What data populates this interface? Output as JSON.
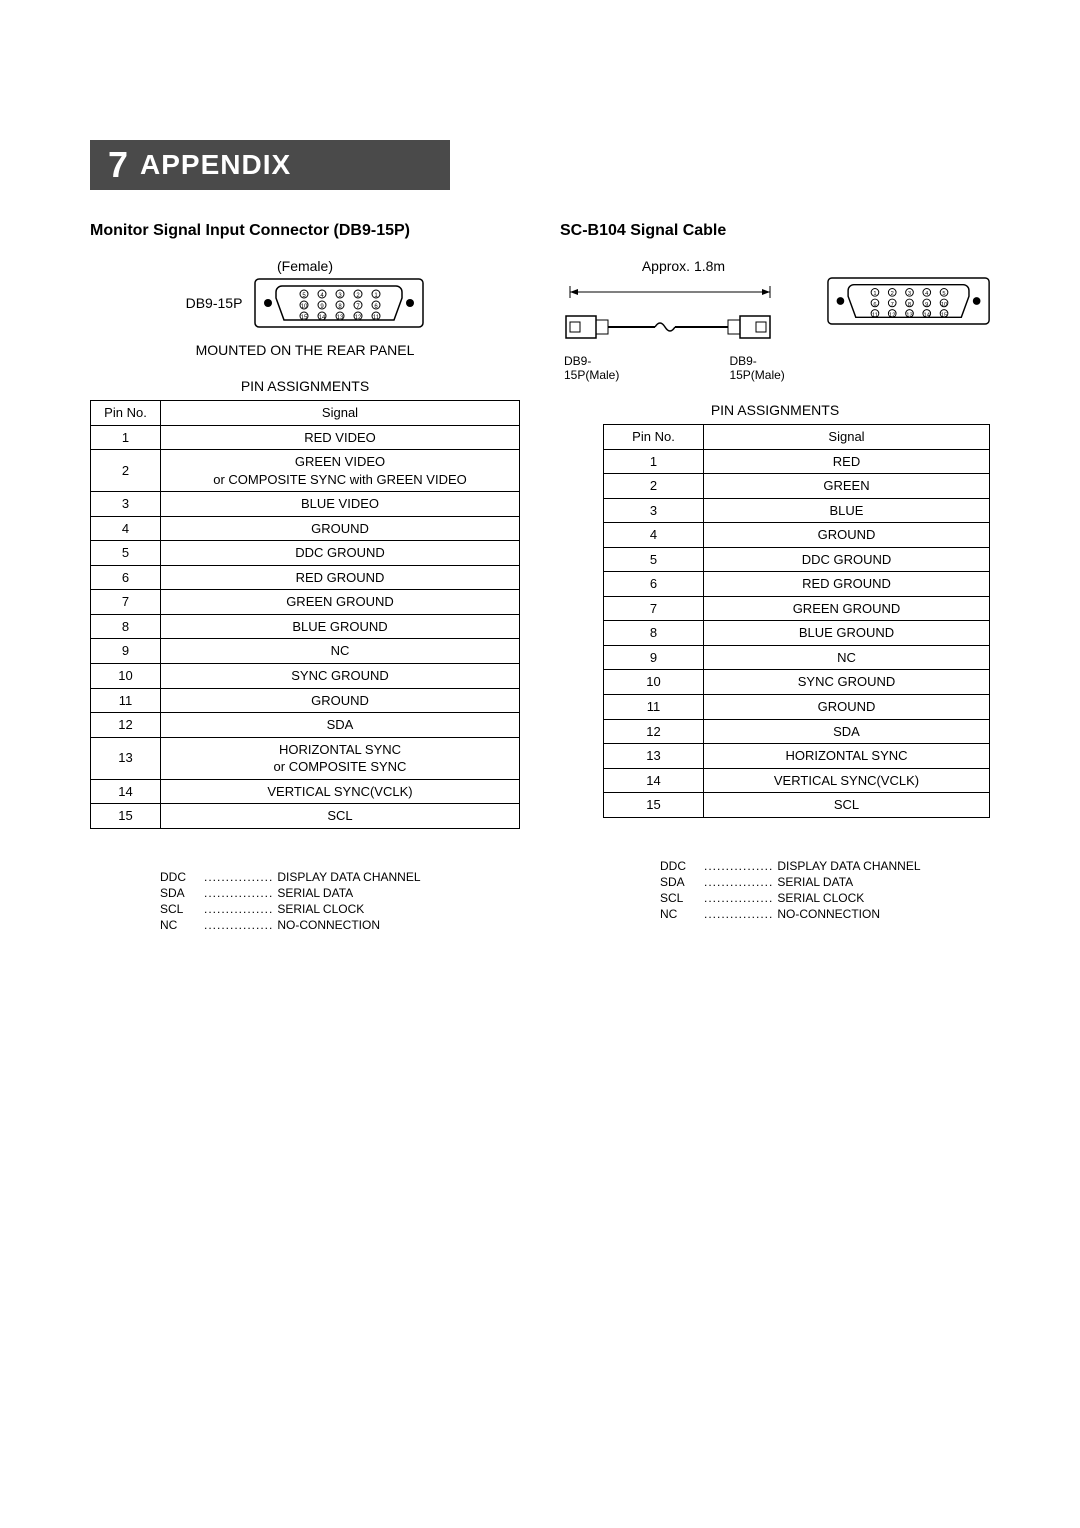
{
  "chapter": {
    "number": "7",
    "title": "APPENDIX"
  },
  "left": {
    "section_title": "Monitor Signal Input Connector (DB9-15P)",
    "connector_caption": "(Female)",
    "connector_side_label": "DB9-15P",
    "mounted_text": "MOUNTED ON THE REAR PANEL",
    "pin_title": "PIN ASSIGNMENTS",
    "table": {
      "headers": [
        "Pin No.",
        "Signal"
      ],
      "rows": [
        [
          "1",
          "RED VIDEO"
        ],
        [
          "2",
          "GREEN VIDEO\nor COMPOSITE SYNC with GREEN VIDEO"
        ],
        [
          "3",
          "BLUE VIDEO"
        ],
        [
          "4",
          "GROUND"
        ],
        [
          "5",
          "DDC  GROUND"
        ],
        [
          "6",
          "RED  GROUND"
        ],
        [
          "7",
          "GREEN  GROUND"
        ],
        [
          "8",
          "BLUE  GROUND"
        ],
        [
          "9",
          "NC"
        ],
        [
          "10",
          "SYNC  GROUND"
        ],
        [
          "11",
          "GROUND"
        ],
        [
          "12",
          "SDA"
        ],
        [
          "13",
          "HORIZONTAL SYNC\nor COMPOSITE SYNC"
        ],
        [
          "14",
          "VERTICAL SYNC(VCLK)"
        ],
        [
          "15",
          "SCL"
        ]
      ]
    },
    "abbrev": [
      [
        "DDC",
        "DISPLAY DATA CHANNEL"
      ],
      [
        "SDA",
        "SERIAL DATA"
      ],
      [
        "SCL",
        "SERIAL CLOCK"
      ],
      [
        "NC",
        "NO-CONNECTION"
      ]
    ]
  },
  "right": {
    "section_title": "SC-B104 Signal Cable",
    "approx_label": "Approx.  1.8m",
    "cable_end_left": "DB9-15P(Male)",
    "cable_end_right": "DB9-15P(Male)",
    "pin_title": "PIN ASSIGNMENTS",
    "table": {
      "headers": [
        "Pin No.",
        "Signal"
      ],
      "rows": [
        [
          "1",
          "RED"
        ],
        [
          "2",
          "GREEN"
        ],
        [
          "3",
          "BLUE"
        ],
        [
          "4",
          "GROUND"
        ],
        [
          "5",
          "DDC  GROUND"
        ],
        [
          "6",
          "RED  GROUND"
        ],
        [
          "7",
          "GREEN  GROUND"
        ],
        [
          "8",
          "BLUE  GROUND"
        ],
        [
          "9",
          "NC"
        ],
        [
          "10",
          "SYNC  GROUND"
        ],
        [
          "11",
          "GROUND"
        ],
        [
          "12",
          "SDA"
        ],
        [
          "13",
          "HORIZONTAL SYNC"
        ],
        [
          "14",
          "VERTICAL SYNC(VCLK)"
        ],
        [
          "15",
          "SCL"
        ]
      ]
    },
    "abbrev": [
      [
        "DDC",
        "DISPLAY DATA CHANNEL"
      ],
      [
        "SDA",
        "SERIAL DATA"
      ],
      [
        "SCL",
        "SERIAL CLOCK"
      ],
      [
        "NC",
        "NO-CONNECTION"
      ]
    ]
  },
  "style": {
    "bar_bg": "#4a4a4a",
    "text_color": "#000000",
    "page_bg": "#ffffff"
  }
}
